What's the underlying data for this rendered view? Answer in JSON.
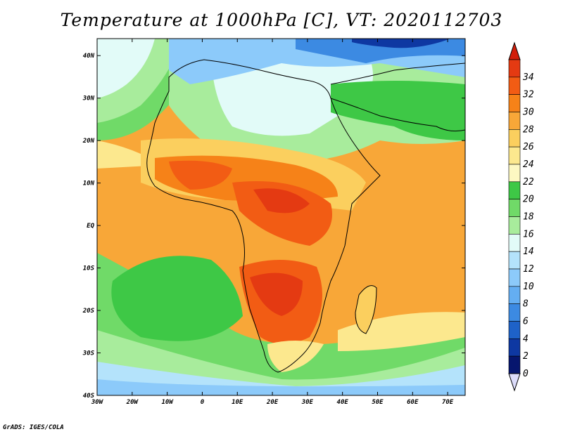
{
  "title": "Temperature at 1000hPa [C], VT: 2020112703",
  "credit": "GrADS: IGES/COLA",
  "map": {
    "lon_ticks": [
      "30W",
      "20W",
      "10W",
      "0",
      "10E",
      "20E",
      "30E",
      "40E",
      "50E",
      "60E",
      "70E"
    ],
    "lat_ticks": [
      "40N",
      "30N",
      "20N",
      "10N",
      "EQ",
      "10S",
      "20S",
      "30S",
      "40S"
    ],
    "lon_range": [
      -30,
      75
    ],
    "lat_range": [
      -40,
      44
    ]
  },
  "colorbar": {
    "labels": [
      "34",
      "32",
      "30",
      "28",
      "26",
      "24",
      "22",
      "20",
      "18",
      "16",
      "14",
      "12",
      "10",
      "8",
      "6",
      "4",
      "2",
      "0"
    ],
    "colors": [
      "#e43a12",
      "#f25c14",
      "#f68218",
      "#f8a738",
      "#fbcf5e",
      "#fce88e",
      "#fdf8c2",
      "#3ec846",
      "#70da68",
      "#a8ec9c",
      "#e2fbf8",
      "#b4e3fb",
      "#8ccafa",
      "#64aef2",
      "#3c8ae2",
      "#1e62c8",
      "#0e38a2",
      "#06166e"
    ],
    "over_color": "#d21e0a",
    "under_color": "#dcdcfa"
  }
}
